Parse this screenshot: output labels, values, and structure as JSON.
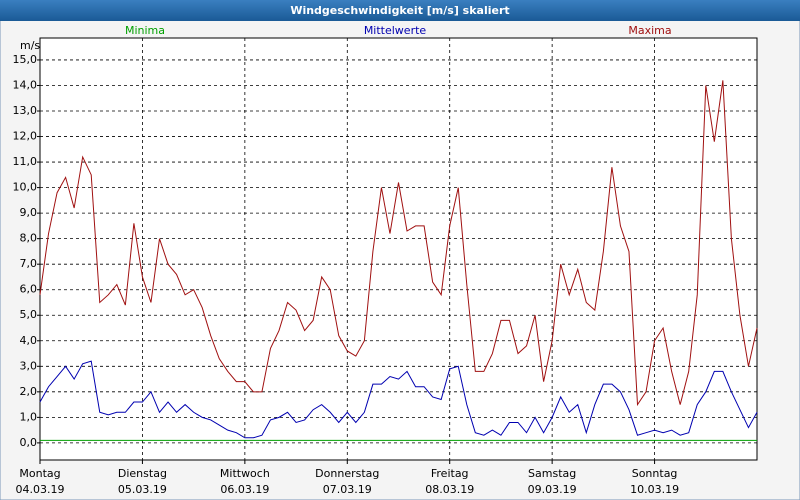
{
  "chart_data": {
    "type": "line",
    "title": "Windgeschwindigkeit [m/s] skaliert",
    "ylabel": "m/s",
    "xlim": [
      0,
      168
    ],
    "xticks": [
      {
        "value": 0,
        "label": "Montag",
        "date": "04.03.19"
      },
      {
        "value": 24,
        "label": "Dienstag",
        "date": "05.03.19"
      },
      {
        "value": 48,
        "label": "Mittwoch",
        "date": "06.03.19"
      },
      {
        "value": 72,
        "label": "Donnerstag",
        "date": "07.03.19"
      },
      {
        "value": 96,
        "label": "Freitag",
        "date": "08.03.19"
      },
      {
        "value": 120,
        "label": "Samstag",
        "date": "09.03.19"
      },
      {
        "value": 144,
        "label": "Sonntag",
        "date": "10.03.19"
      }
    ],
    "ylim": [
      -0.67,
      15.86
    ],
    "yticks": [
      {
        "value": 0,
        "label": "0,0"
      },
      {
        "value": 1,
        "label": "1,0"
      },
      {
        "value": 2,
        "label": "2,0"
      },
      {
        "value": 3,
        "label": "3,0"
      },
      {
        "value": 4,
        "label": "4,0"
      },
      {
        "value": 5,
        "label": "5,0"
      },
      {
        "value": 6,
        "label": "6,0"
      },
      {
        "value": 7,
        "label": "7,0"
      },
      {
        "value": 8,
        "label": "8,0"
      },
      {
        "value": 9,
        "label": "9,0"
      },
      {
        "value": 10,
        "label": "10,0"
      },
      {
        "value": 11,
        "label": "11,0"
      },
      {
        "value": 12,
        "label": "12,0"
      },
      {
        "value": 13,
        "label": "13,0"
      },
      {
        "value": 14,
        "label": "14,0"
      },
      {
        "value": 15,
        "label": "15,0"
      }
    ],
    "grid": true,
    "x": [
      0,
      2,
      4,
      6,
      8,
      10,
      12,
      14,
      16,
      18,
      20,
      22,
      24,
      26,
      28,
      30,
      32,
      34,
      36,
      38,
      40,
      42,
      44,
      46,
      48,
      50,
      52,
      54,
      56,
      58,
      60,
      62,
      64,
      66,
      68,
      70,
      72,
      74,
      76,
      78,
      80,
      82,
      84,
      86,
      88,
      90,
      92,
      94,
      96,
      98,
      100,
      102,
      104,
      106,
      108,
      110,
      112,
      114,
      116,
      118,
      120,
      122,
      124,
      126,
      128,
      130,
      132,
      134,
      136,
      138,
      140,
      142,
      144,
      146,
      148,
      150,
      152,
      154,
      156,
      158,
      160,
      162,
      164,
      166,
      168
    ],
    "series": [
      {
        "name": "Minima",
        "color": "#00a000",
        "values": [
          0.1,
          0.1,
          0.1,
          0.1,
          0.1,
          0.1,
          0.1,
          0.1,
          0.1,
          0.1,
          0.1,
          0.1,
          0.1,
          0.1,
          0.1,
          0.1,
          0.1,
          0.1,
          0.1,
          0.1,
          0.1,
          0.1,
          0.1,
          0.1,
          0.1,
          0.1,
          0.1,
          0.1,
          0.1,
          0.1,
          0.1,
          0.1,
          0.1,
          0.1,
          0.1,
          0.1,
          0.1,
          0.1,
          0.1,
          0.1,
          0.1,
          0.1,
          0.1,
          0.1,
          0.1,
          0.1,
          0.1,
          0.1,
          0.1,
          0.1,
          0.1,
          0.1,
          0.1,
          0.1,
          0.1,
          0.1,
          0.1,
          0.1,
          0.1,
          0.1,
          0.1,
          0.1,
          0.1,
          0.1,
          0.1,
          0.1,
          0.1,
          0.1,
          0.1,
          0.1,
          0.1,
          0.1,
          0.1,
          0.1,
          0.1,
          0.1,
          0.1,
          0.1,
          0.1,
          0.1,
          0.1,
          0.1,
          0.1,
          0.1,
          0.1
        ]
      },
      {
        "name": "Mittelwerte",
        "color": "#0000b0",
        "values": [
          1.6,
          2.2,
          2.6,
          3,
          2.5,
          3.1,
          3.2,
          1.2,
          1.1,
          1.2,
          1.2,
          1.6,
          1.6,
          2,
          1.2,
          1.6,
          1.2,
          1.5,
          1.2,
          1,
          0.9,
          0.7,
          0.5,
          0.4,
          0.2,
          0.2,
          0.3,
          0.9,
          1,
          1.2,
          0.8,
          0.9,
          1.3,
          1.5,
          1.2,
          0.8,
          1.2,
          0.8,
          1.2,
          2.3,
          2.3,
          2.6,
          2.5,
          2.8,
          2.2,
          2.2,
          1.8,
          1.7,
          2.9,
          3,
          1.5,
          0.4,
          0.3,
          0.5,
          0.3,
          0.8,
          0.8,
          0.4,
          1,
          0.4,
          1,
          1.8,
          1.2,
          1.5,
          0.4,
          1.5,
          2.3,
          2.3,
          2,
          1.3,
          0.3,
          0.4,
          0.5,
          0.4,
          0.5,
          0.3,
          0.4,
          1.5,
          2,
          2.8,
          2.8,
          2,
          1.3,
          0.6,
          1.2
        ]
      },
      {
        "name": "Maxima",
        "color": "#a01010",
        "values": [
          5.8,
          8.2,
          9.8,
          10.4,
          9.2,
          11.2,
          10.5,
          5.5,
          5.8,
          6.2,
          5.4,
          8.6,
          6.5,
          5.5,
          8,
          7,
          6.6,
          5.8,
          6,
          5.3,
          4.2,
          3.3,
          2.8,
          2.4,
          2.4,
          2,
          2,
          3.7,
          4.4,
          5.5,
          5.2,
          4.4,
          4.8,
          6.5,
          6,
          4.2,
          3.6,
          3.4,
          4,
          7.5,
          10,
          8.2,
          10.2,
          8.3,
          8.5,
          8.5,
          6.3,
          5.8,
          8.5,
          10,
          6.2,
          2.8,
          2.8,
          3.5,
          4.8,
          4.8,
          3.5,
          3.8,
          5,
          2.4,
          4,
          7,
          5.8,
          6.8,
          5.5,
          5.2,
          7.5,
          10.8,
          8.5,
          7.5,
          1.5,
          2,
          4,
          4.5,
          2.8,
          1.5,
          2.8,
          5.8,
          14,
          11.8,
          14.2,
          8,
          5,
          3,
          4.5
        ]
      }
    ]
  }
}
